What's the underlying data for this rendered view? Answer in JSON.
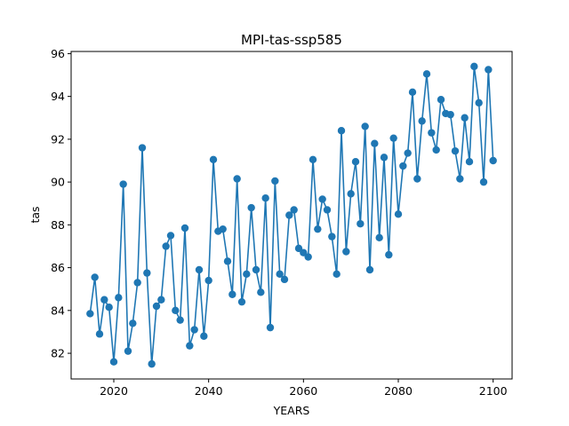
{
  "chart_data": {
    "type": "line",
    "title": "MPI-tas-ssp585",
    "xlabel": "YEARS",
    "ylabel": "tas",
    "xlim": [
      2011,
      2104
    ],
    "ylim": [
      80.8,
      96.1
    ],
    "xticks": [
      2020,
      2040,
      2060,
      2080,
      2100
    ],
    "yticks": [
      82,
      84,
      86,
      88,
      90,
      92,
      94,
      96
    ],
    "grid": false,
    "legend": "none",
    "color": "#1f77b4",
    "marker": "circle",
    "series": [
      {
        "x": [
          2015,
          2016,
          2017,
          2018,
          2019,
          2020,
          2021,
          2022,
          2023,
          2024,
          2025,
          2026,
          2027,
          2028,
          2029,
          2030,
          2031,
          2032,
          2033,
          2034,
          2035,
          2036,
          2037,
          2038,
          2039,
          2040,
          2041,
          2042,
          2043,
          2044,
          2045,
          2046,
          2047,
          2048,
          2049,
          2050,
          2051,
          2052,
          2053,
          2054,
          2055,
          2056,
          2057,
          2058,
          2059,
          2060,
          2061,
          2062,
          2063,
          2064,
          2065,
          2066,
          2067,
          2068,
          2069,
          2070,
          2071,
          2072,
          2073,
          2074,
          2075,
          2076,
          2077,
          2078,
          2079,
          2080,
          2081,
          2082,
          2083,
          2084,
          2085,
          2086,
          2087,
          2088,
          2089,
          2090,
          2091,
          2092,
          2093,
          2094,
          2095,
          2096,
          2097,
          2098,
          2099,
          2100
        ],
        "values": [
          83.85,
          85.55,
          82.9,
          84.5,
          84.15,
          81.6,
          84.6,
          89.9,
          82.1,
          83.4,
          85.3,
          91.6,
          85.75,
          81.5,
          84.2,
          84.5,
          87.0,
          87.5,
          84.0,
          83.55,
          87.85,
          82.35,
          83.1,
          85.9,
          82.8,
          85.4,
          91.05,
          87.7,
          87.8,
          86.3,
          84.75,
          90.15,
          84.4,
          85.7,
          88.8,
          85.9,
          84.85,
          89.25,
          83.2,
          90.05,
          85.7,
          85.45,
          88.45,
          88.7,
          86.9,
          86.7,
          86.5,
          91.05,
          87.8,
          89.2,
          88.7,
          87.45,
          85.7,
          92.4,
          86.75,
          89.45,
          90.95,
          88.05,
          92.6,
          85.9,
          91.8,
          87.4,
          91.15,
          86.6,
          92.05,
          88.5,
          90.75,
          91.35,
          94.2,
          90.15,
          92.85,
          95.05,
          92.3,
          91.5,
          93.85,
          93.2,
          93.15,
          91.45,
          90.15,
          93.0,
          90.95,
          95.4,
          93.7,
          90.0,
          95.25,
          91.0
        ]
      }
    ]
  }
}
